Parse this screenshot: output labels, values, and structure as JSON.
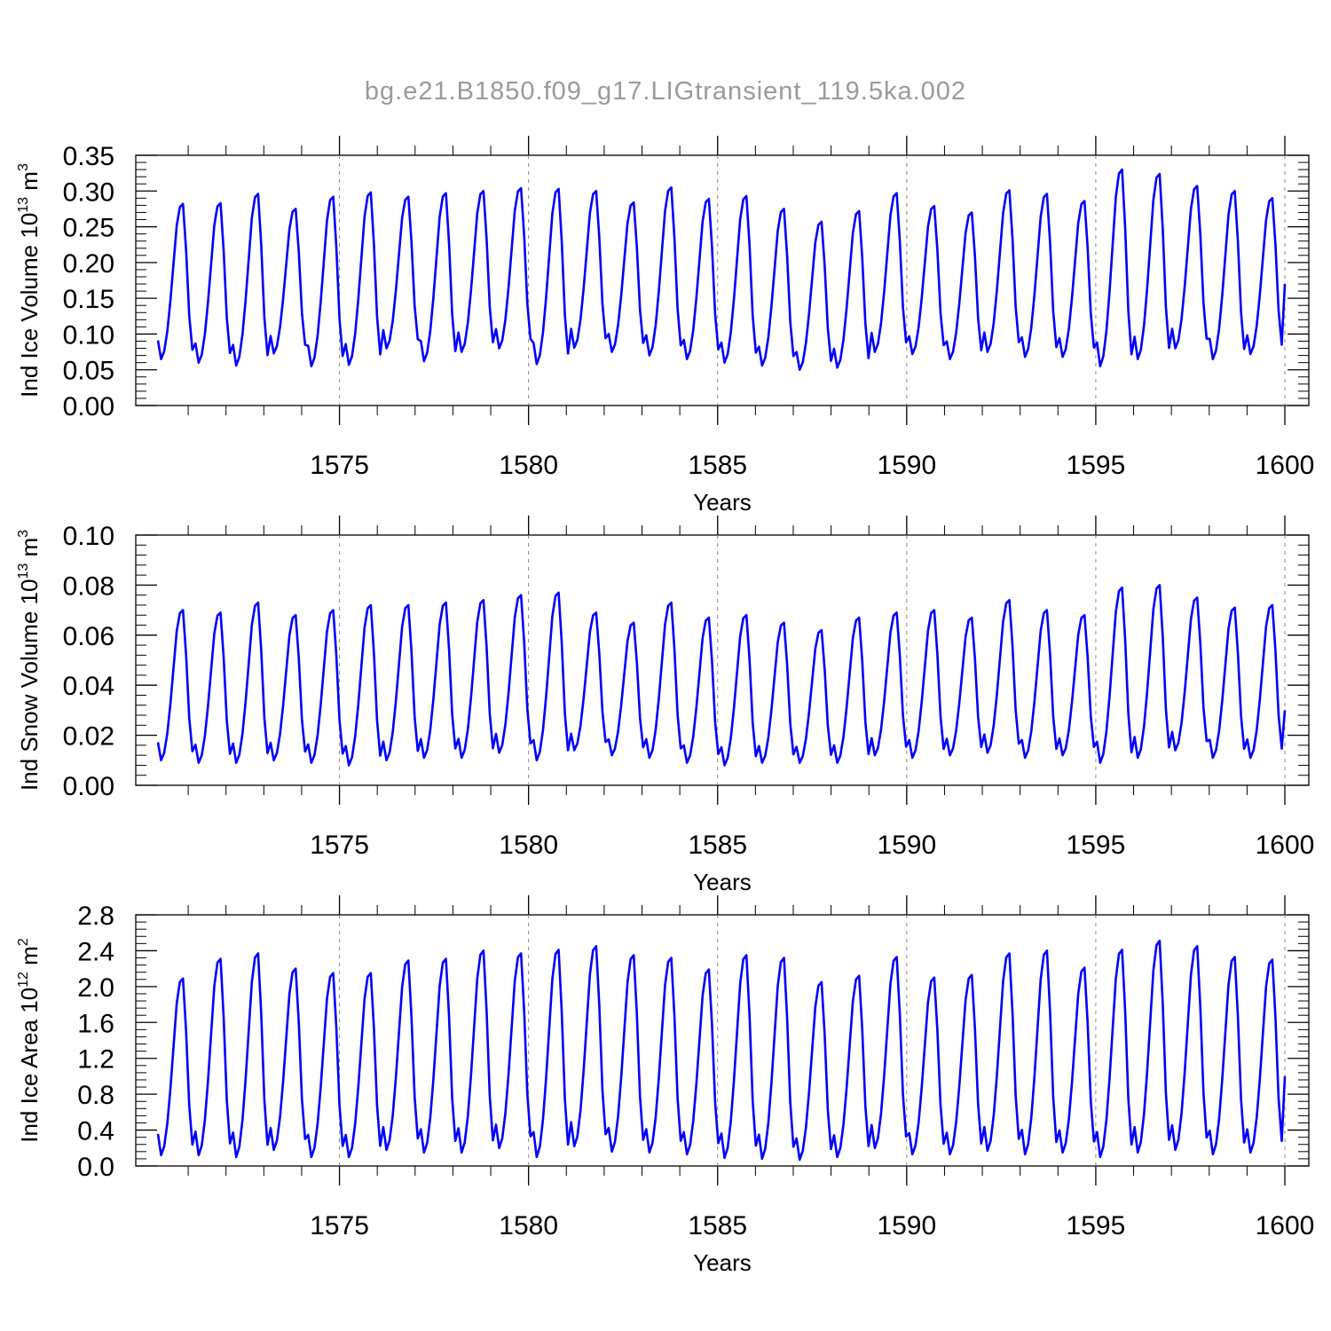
{
  "title": "bg.e21.B1850.f09_g17.LIGtransient_119.5ka.002",
  "chart_data": [
    {
      "type": "line",
      "ylabel": "Ind Ice Volume 10",
      "ylabel_exp": "13",
      "ylabel_unit": " m",
      "ylabel_unit_exp": "3",
      "xlabel": "Years",
      "xlim": [
        1570.2,
        1600
      ],
      "ylim": [
        0,
        0.35
      ],
      "yticks": [
        "0.00",
        "0.05",
        "0.10",
        "0.15",
        "0.20",
        "0.25",
        "0.30",
        "0.35"
      ],
      "xticks": [
        "1575",
        "1580",
        "1585",
        "1590",
        "1595",
        "1600"
      ],
      "grid": "vertical dashed at labeled years",
      "color": "#0000ff",
      "series": [
        {
          "annual_min": [
            0.065,
            0.06,
            0.056,
            0.073,
            0.055,
            0.057,
            0.08,
            0.062,
            0.075,
            0.08,
            0.058,
            0.081,
            0.075,
            0.07,
            0.065,
            0.06,
            0.056,
            0.05,
            0.053,
            0.075,
            0.072,
            0.065,
            0.075,
            0.068,
            0.068,
            0.055,
            0.065,
            0.08,
            0.065,
            0.072
          ],
          "annual_max": [
            0.282,
            0.283,
            0.296,
            0.275,
            0.292,
            0.298,
            0.292,
            0.297,
            0.3,
            0.304,
            0.303,
            0.3,
            0.284,
            0.305,
            0.289,
            0.293,
            0.275,
            0.257,
            0.272,
            0.297,
            0.279,
            0.27,
            0.301,
            0.296,
            0.286,
            0.33,
            0.324,
            0.307,
            0.3,
            0.29
          ],
          "end_value": 0.17
        }
      ]
    },
    {
      "type": "line",
      "ylabel": "Ind Snow Volume 10",
      "ylabel_exp": "13",
      "ylabel_unit": " m",
      "ylabel_unit_exp": "3",
      "xlabel": "Years",
      "xlim": [
        1570.2,
        1600
      ],
      "ylim": [
        0,
        0.1
      ],
      "yticks": [
        "0.00",
        "0.02",
        "0.04",
        "0.06",
        "0.08",
        "0.10"
      ],
      "xticks": [
        "1575",
        "1580",
        "1585",
        "1590",
        "1595",
        "1600"
      ],
      "grid": "vertical dashed at labeled years",
      "color": "#0000ff",
      "series": [
        {
          "annual_min": [
            0.01,
            0.009,
            0.009,
            0.01,
            0.009,
            0.008,
            0.01,
            0.011,
            0.011,
            0.013,
            0.01,
            0.014,
            0.012,
            0.011,
            0.009,
            0.008,
            0.009,
            0.009,
            0.009,
            0.012,
            0.011,
            0.012,
            0.013,
            0.011,
            0.012,
            0.009,
            0.011,
            0.014,
            0.011,
            0.011
          ],
          "annual_max": [
            0.07,
            0.069,
            0.073,
            0.068,
            0.07,
            0.072,
            0.072,
            0.073,
            0.074,
            0.076,
            0.077,
            0.069,
            0.065,
            0.073,
            0.067,
            0.068,
            0.065,
            0.062,
            0.067,
            0.069,
            0.07,
            0.067,
            0.074,
            0.07,
            0.068,
            0.079,
            0.08,
            0.075,
            0.071,
            0.072
          ],
          "end_value": 0.03
        }
      ]
    },
    {
      "type": "line",
      "ylabel": "Ind Ice Area 10",
      "ylabel_exp": "12",
      "ylabel_unit": " m",
      "ylabel_unit_exp": "2",
      "xlabel": "Years",
      "xlim": [
        1570.2,
        1600
      ],
      "ylim": [
        0,
        2.8
      ],
      "yticks": [
        "0.0",
        "0.4",
        "0.8",
        "1.2",
        "1.6",
        "2.0",
        "2.4",
        "2.8"
      ],
      "xticks": [
        "1575",
        "1580",
        "1585",
        "1590",
        "1595",
        "1600"
      ],
      "grid": "vertical dashed at labeled years",
      "color": "#0000ff",
      "series": [
        {
          "annual_min": [
            0.12,
            0.12,
            0.1,
            0.18,
            0.1,
            0.1,
            0.18,
            0.15,
            0.15,
            0.2,
            0.1,
            0.22,
            0.16,
            0.15,
            0.13,
            0.09,
            0.08,
            0.07,
            0.1,
            0.2,
            0.13,
            0.13,
            0.17,
            0.13,
            0.15,
            0.1,
            0.15,
            0.18,
            0.13,
            0.15
          ],
          "annual_max": [
            2.09,
            2.31,
            2.37,
            2.2,
            2.15,
            2.15,
            2.29,
            2.31,
            2.4,
            2.37,
            2.41,
            2.45,
            2.35,
            2.32,
            2.19,
            2.35,
            2.32,
            2.05,
            2.12,
            2.33,
            2.1,
            2.13,
            2.37,
            2.4,
            2.21,
            2.41,
            2.51,
            2.45,
            2.33,
            2.3
          ],
          "end_value": 1.0
        }
      ]
    }
  ]
}
